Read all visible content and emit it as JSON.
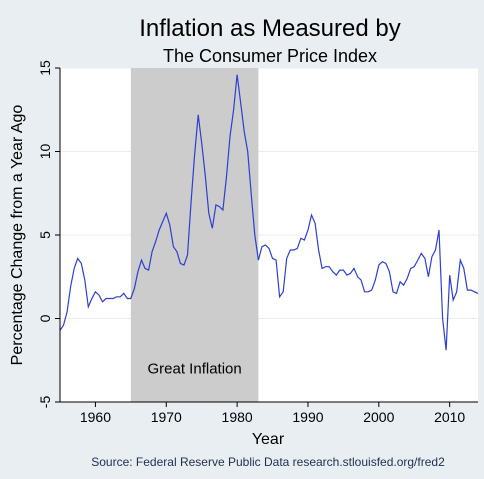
{
  "chart_data": {
    "type": "line",
    "title": "Inflation as Measured by",
    "subtitle": "The Consumer Price Index",
    "xlabel": "Year",
    "ylabel": "Percentage Change from a Year Ago",
    "source": "Source: Federal Reserve Public Data research.stlouisfed.org/fred2",
    "xlim": [
      1955,
      2014
    ],
    "ylim": [
      -5,
      15
    ],
    "x_ticks": [
      1960,
      1970,
      1980,
      1990,
      2000,
      2010
    ],
    "y_ticks": [
      -5,
      0,
      5,
      10,
      15
    ],
    "grid": "horizontal light gray",
    "colors": {
      "line": "#2d3fd0",
      "shade": "#cccccc",
      "plot_bg": "#ffffff",
      "page_bg": "#e9eef2"
    },
    "annotation": {
      "label": "Great Inflation",
      "x_start": 1965,
      "x_end": 1983
    },
    "series": [
      {
        "x": [
          1955.0,
          1955.5,
          1956.0,
          1956.5,
          1957.0,
          1957.5,
          1958.0,
          1958.5,
          1959.0,
          1959.5,
          1960.0,
          1960.5,
          1961.0,
          1961.5,
          1962.0,
          1962.5,
          1963.0,
          1963.5,
          1964.0,
          1964.5,
          1965.0,
          1965.5,
          1966.0,
          1966.5,
          1967.0,
          1967.5,
          1968.0,
          1968.5,
          1969.0,
          1969.5,
          1970.0,
          1970.5,
          1971.0,
          1971.5,
          1972.0,
          1972.5,
          1973.0,
          1973.5,
          1974.0,
          1974.5,
          1975.0,
          1975.5,
          1976.0,
          1976.5,
          1977.0,
          1977.5,
          1978.0,
          1978.5,
          1979.0,
          1979.5,
          1980.0,
          1980.5,
          1981.0,
          1981.5,
          1982.0,
          1982.5,
          1983.0,
          1983.5,
          1984.0,
          1984.5,
          1985.0,
          1985.5,
          1986.0,
          1986.5,
          1987.0,
          1987.5,
          1988.0,
          1988.5,
          1989.0,
          1989.5,
          1990.0,
          1990.5,
          1991.0,
          1991.5,
          1992.0,
          1992.5,
          1993.0,
          1993.5,
          1994.0,
          1994.5,
          1995.0,
          1995.5,
          1996.0,
          1996.5,
          1997.0,
          1997.5,
          1998.0,
          1998.5,
          1999.0,
          1999.5,
          2000.0,
          2000.5,
          2001.0,
          2001.5,
          2002.0,
          2002.5,
          2003.0,
          2003.5,
          2004.0,
          2004.5,
          2005.0,
          2005.5,
          2006.0,
          2006.5,
          2007.0,
          2007.5,
          2008.0,
          2008.5,
          2009.0,
          2009.5,
          2010.0,
          2010.5,
          2011.0,
          2011.5,
          2012.0,
          2012.5,
          2013.0,
          2013.5,
          2014.0
        ],
        "y": [
          -0.7,
          -0.4,
          0.4,
          1.9,
          3.0,
          3.6,
          3.3,
          2.3,
          0.7,
          1.2,
          1.6,
          1.4,
          1.0,
          1.2,
          1.2,
          1.2,
          1.3,
          1.3,
          1.5,
          1.2,
          1.2,
          1.8,
          2.8,
          3.5,
          3.0,
          2.9,
          4.0,
          4.6,
          5.3,
          5.8,
          6.3,
          5.6,
          4.3,
          4.0,
          3.3,
          3.2,
          3.8,
          7.0,
          9.8,
          12.2,
          10.5,
          8.6,
          6.3,
          5.4,
          6.8,
          6.7,
          6.5,
          8.5,
          10.9,
          12.5,
          14.6,
          12.9,
          11.2,
          10.0,
          7.4,
          5.0,
          3.5,
          4.3,
          4.4,
          4.2,
          3.6,
          3.5,
          1.3,
          1.6,
          3.6,
          4.1,
          4.1,
          4.2,
          4.8,
          4.7,
          5.3,
          6.2,
          5.7,
          4.1,
          3.0,
          3.1,
          3.1,
          2.8,
          2.6,
          2.9,
          2.9,
          2.6,
          2.7,
          3.0,
          2.5,
          2.3,
          1.6,
          1.6,
          1.7,
          2.3,
          3.2,
          3.4,
          3.3,
          2.8,
          1.6,
          1.5,
          2.2,
          2.0,
          2.4,
          3.0,
          3.1,
          3.5,
          3.9,
          3.6,
          2.5,
          3.7,
          4.1,
          5.3,
          0.0,
          -1.9,
          2.6,
          1.1,
          1.6,
          3.5,
          3.0,
          1.7,
          1.7,
          1.6,
          1.5
        ]
      }
    ]
  }
}
